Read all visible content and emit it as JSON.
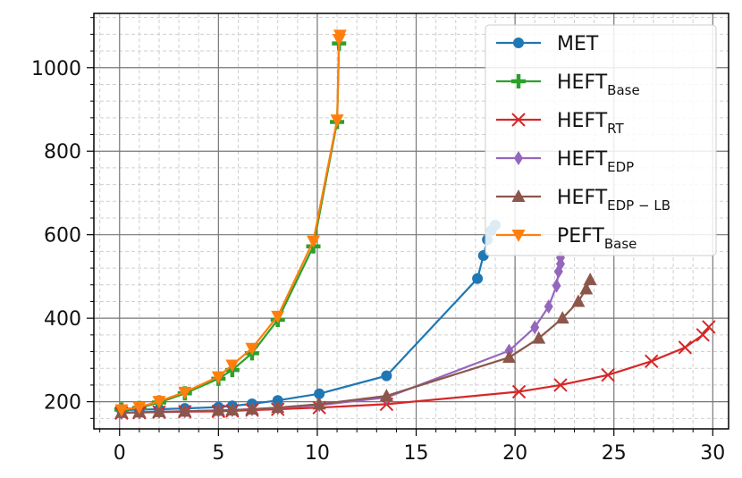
{
  "chart_data": {
    "type": "line",
    "title": "",
    "xlabel": "",
    "ylabel": "",
    "xlim": [
      -1.3,
      30.8
    ],
    "ylim": [
      135,
      1130
    ],
    "x_ticks": [
      0,
      5,
      10,
      15,
      20,
      25,
      30
    ],
    "y_ticks": [
      200,
      400,
      600,
      800,
      1000
    ],
    "x_tick_labels": [
      "0",
      "5",
      "10",
      "15",
      "20",
      "25",
      "30"
    ],
    "y_tick_labels": [
      "200",
      "400",
      "600",
      "800",
      "1000"
    ],
    "grid": true,
    "legend_position": "top-right",
    "series": [
      {
        "name": "MET",
        "name_main": "MET",
        "name_sub": "",
        "color": "#1f77b4",
        "marker": "circle",
        "points": [
          [
            0.1,
            180
          ],
          [
            1,
            181
          ],
          [
            2,
            182
          ],
          [
            3.3,
            184
          ],
          [
            5,
            187
          ],
          [
            5.7,
            190
          ],
          [
            6.7,
            195
          ],
          [
            8,
            203
          ],
          [
            10.1,
            219
          ],
          [
            13.5,
            262
          ],
          [
            18.1,
            495
          ],
          [
            18.4,
            550
          ],
          [
            18.6,
            588
          ],
          [
            18.8,
            610
          ],
          [
            19,
            623
          ]
        ]
      },
      {
        "name": "HEFT_Base",
        "name_main": "HEFT",
        "name_sub": "Base",
        "color": "#2ca02c",
        "marker": "plus",
        "points": [
          [
            0.1,
            181
          ],
          [
            1,
            185
          ],
          [
            2,
            198
          ],
          [
            3.3,
            220
          ],
          [
            5,
            255
          ],
          [
            5.7,
            276
          ],
          [
            6.7,
            316
          ],
          [
            8,
            396
          ],
          [
            9.8,
            572
          ],
          [
            11,
            870
          ],
          [
            11.1,
            1058
          ]
        ]
      },
      {
        "name": "HEFT_RT",
        "name_main": "HEFT",
        "name_sub": "RT",
        "color": "#d62728",
        "marker": "x",
        "points": [
          [
            0.1,
            173
          ],
          [
            1,
            174
          ],
          [
            2,
            175
          ],
          [
            3.3,
            176
          ],
          [
            5,
            177
          ],
          [
            5.7,
            178
          ],
          [
            6.7,
            180
          ],
          [
            8,
            182
          ],
          [
            10.1,
            186
          ],
          [
            13.5,
            194
          ],
          [
            20.2,
            224
          ],
          [
            22.3,
            240
          ],
          [
            24.7,
            264
          ],
          [
            26.9,
            297
          ],
          [
            28.6,
            330
          ],
          [
            29.5,
            360
          ],
          [
            29.8,
            379
          ]
        ]
      },
      {
        "name": "HEFT_EDP",
        "name_main": "HEFT",
        "name_sub": "EDP",
        "color": "#9467bd",
        "marker": "diamond",
        "points": [
          [
            0.1,
            173
          ],
          [
            1,
            174
          ],
          [
            2,
            176
          ],
          [
            3.3,
            177
          ],
          [
            5,
            179
          ],
          [
            5.7,
            180
          ],
          [
            6.7,
            182
          ],
          [
            8,
            185
          ],
          [
            10.1,
            192
          ],
          [
            13.5,
            210
          ],
          [
            19.7,
            322
          ],
          [
            21,
            378
          ],
          [
            21.7,
            428
          ],
          [
            22.1,
            478
          ],
          [
            22.2,
            512
          ],
          [
            22.3,
            530
          ],
          [
            22.3,
            545
          ]
        ]
      },
      {
        "name": "HEFT_EDP−LB",
        "name_main": "HEFT",
        "name_sub": "EDP − LB",
        "color": "#8c564b",
        "marker": "triangle-up",
        "points": [
          [
            0.1,
            174
          ],
          [
            1,
            175
          ],
          [
            2,
            176
          ],
          [
            3.3,
            177
          ],
          [
            5,
            179
          ],
          [
            5.7,
            180
          ],
          [
            6.7,
            182
          ],
          [
            8,
            186
          ],
          [
            10.1,
            194
          ],
          [
            13.5,
            214
          ],
          [
            19.7,
            306
          ],
          [
            21.2,
            352
          ],
          [
            22.4,
            400
          ],
          [
            23.2,
            440
          ],
          [
            23.6,
            470
          ],
          [
            23.8,
            492
          ]
        ]
      },
      {
        "name": "PEFT_Base",
        "name_main": "PEFT",
        "name_sub": "Base",
        "color": "#ff7f0e",
        "marker": "triangle-down",
        "points": [
          [
            0.1,
            181
          ],
          [
            1,
            187
          ],
          [
            2,
            201
          ],
          [
            3.3,
            223
          ],
          [
            5,
            260
          ],
          [
            5.7,
            288
          ],
          [
            6.7,
            328
          ],
          [
            8,
            405
          ],
          [
            9.8,
            585
          ],
          [
            11,
            875
          ],
          [
            11.1,
            1068
          ],
          [
            11.15,
            1078
          ]
        ]
      }
    ]
  }
}
